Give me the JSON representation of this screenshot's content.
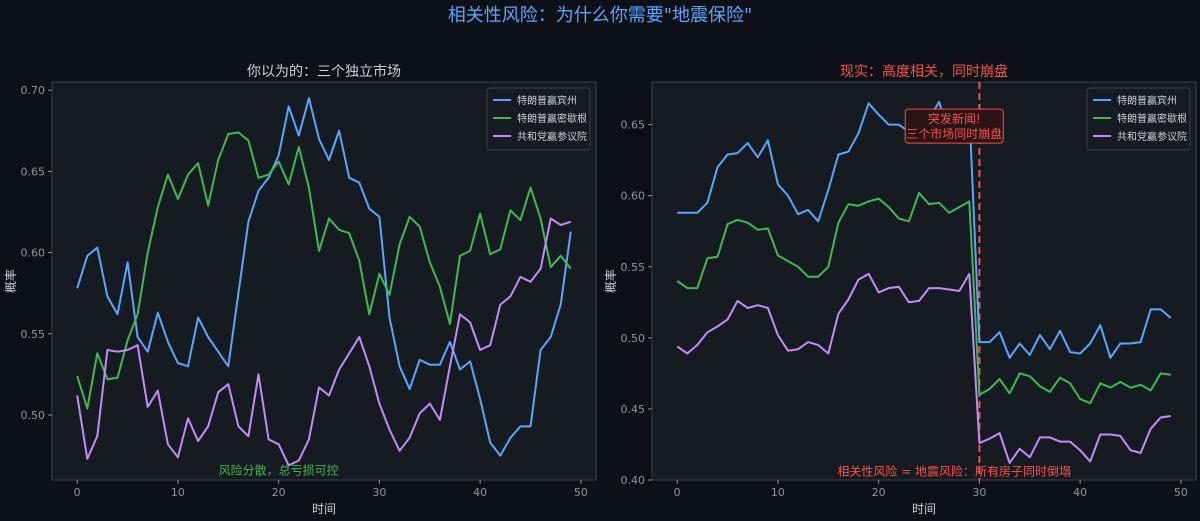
{
  "suptitle": "相关性风险：为什么你需要\"地震保险\"",
  "colors": {
    "background": "#0d1117",
    "axes_bg": "#161b22",
    "spine": "#3a4049",
    "text": "#c9d1d9",
    "tick": "#8b949e",
    "suptitle": "#58a6ff",
    "blue": "#58a6ff",
    "green": "#3fb950",
    "purple": "#c58af9",
    "red": "#f85149"
  },
  "chart_data": [
    {
      "type": "line",
      "title": "你以为的：三个独立市场",
      "xlabel": "时间",
      "ylabel": "概率",
      "xlim": [
        -2.5,
        51.5
      ],
      "ylim": [
        0.46,
        0.705
      ],
      "xticks": [
        0,
        10,
        20,
        30,
        40,
        50
      ],
      "yticks": [
        0.5,
        0.55,
        0.6,
        0.65,
        0.7
      ],
      "ytick_labels": [
        "0.50",
        "0.55",
        "0.60",
        "0.65",
        "0.70"
      ],
      "grid": false,
      "legend": "top-right",
      "x_start": 0,
      "series": [
        {
          "name": "特朗普赢宾州",
          "color": "#58a6ff",
          "values": [
            0.578,
            0.598,
            0.603,
            0.573,
            0.562,
            0.594,
            0.548,
            0.539,
            0.563,
            0.545,
            0.532,
            0.53,
            0.56,
            0.548,
            0.539,
            0.53,
            0.575,
            0.619,
            0.638,
            0.646,
            0.66,
            0.69,
            0.672,
            0.695,
            0.67,
            0.657,
            0.675,
            0.646,
            0.643,
            0.627,
            0.622,
            0.56,
            0.53,
            0.516,
            0.534,
            0.531,
            0.531,
            0.545,
            0.528,
            0.533,
            0.51,
            0.483,
            0.475,
            0.486,
            0.493,
            0.493,
            0.54,
            0.548,
            0.568,
            0.613
          ]
        },
        {
          "name": "特朗普赢密歇根",
          "color": "#3fb950",
          "values": [
            0.524,
            0.504,
            0.538,
            0.522,
            0.523,
            0.546,
            0.562,
            0.6,
            0.628,
            0.648,
            0.633,
            0.648,
            0.655,
            0.629,
            0.657,
            0.673,
            0.674,
            0.669,
            0.646,
            0.648,
            0.656,
            0.642,
            0.665,
            0.64,
            0.601,
            0.621,
            0.614,
            0.612,
            0.595,
            0.562,
            0.587,
            0.574,
            0.605,
            0.622,
            0.616,
            0.594,
            0.579,
            0.556,
            0.598,
            0.601,
            0.624,
            0.599,
            0.602,
            0.626,
            0.62,
            0.64,
            0.621,
            0.591,
            0.598,
            0.59
          ]
        },
        {
          "name": "共和党赢参议院",
          "color": "#c58af9",
          "values": [
            0.512,
            0.473,
            0.487,
            0.54,
            0.539,
            0.54,
            0.543,
            0.505,
            0.515,
            0.482,
            0.474,
            0.498,
            0.484,
            0.493,
            0.514,
            0.519,
            0.493,
            0.487,
            0.525,
            0.485,
            0.482,
            0.469,
            0.472,
            0.485,
            0.517,
            0.512,
            0.528,
            0.538,
            0.548,
            0.53,
            0.507,
            0.491,
            0.478,
            0.486,
            0.501,
            0.507,
            0.497,
            0.53,
            0.562,
            0.557,
            0.54,
            0.543,
            0.568,
            0.573,
            0.585,
            0.582,
            0.59,
            0.621,
            0.617,
            0.619
          ]
        }
      ],
      "annotations": [
        {
          "text": "风险分散，总亏损可控",
          "x": 20,
          "y": 0.466,
          "color": "#3fb950"
        }
      ]
    },
    {
      "type": "line",
      "title": "现实：高度相关，同时崩盘",
      "xlabel": "时间",
      "ylabel": "概率",
      "xlim": [
        -2.5,
        51.5
      ],
      "ylim": [
        0.4,
        0.68
      ],
      "xticks": [
        0,
        10,
        20,
        30,
        40,
        50
      ],
      "yticks": [
        0.4,
        0.45,
        0.5,
        0.55,
        0.6,
        0.65
      ],
      "ytick_labels": [
        "0.40",
        "0.45",
        "0.50",
        "0.55",
        "0.60",
        "0.65"
      ],
      "grid": false,
      "legend": "top-right",
      "x_start": 0,
      "event_x": 30,
      "series": [
        {
          "name": "特朗普赢宾州",
          "color": "#58a6ff",
          "values": [
            0.588,
            0.588,
            0.588,
            0.595,
            0.62,
            0.629,
            0.63,
            0.637,
            0.627,
            0.639,
            0.608,
            0.6,
            0.587,
            0.59,
            0.582,
            0.604,
            0.629,
            0.631,
            0.644,
            0.665,
            0.657,
            0.65,
            0.65,
            0.645,
            0.656,
            0.654,
            0.666,
            0.642,
            0.652,
            0.66,
            0.497,
            0.497,
            0.504,
            0.486,
            0.496,
            0.488,
            0.502,
            0.492,
            0.505,
            0.49,
            0.489,
            0.496,
            0.509,
            0.486,
            0.496,
            0.496,
            0.497,
            0.52,
            0.52,
            0.514
          ]
        },
        {
          "name": "特朗普赢密歇根",
          "color": "#3fb950",
          "values": [
            0.54,
            0.535,
            0.535,
            0.556,
            0.557,
            0.58,
            0.583,
            0.581,
            0.576,
            0.577,
            0.558,
            0.554,
            0.55,
            0.543,
            0.543,
            0.55,
            0.581,
            0.594,
            0.593,
            0.596,
            0.598,
            0.592,
            0.584,
            0.582,
            0.602,
            0.594,
            0.595,
            0.588,
            0.592,
            0.596,
            0.46,
            0.464,
            0.471,
            0.461,
            0.475,
            0.473,
            0.466,
            0.462,
            0.472,
            0.468,
            0.457,
            0.454,
            0.468,
            0.465,
            0.469,
            0.465,
            0.467,
            0.463,
            0.475,
            0.474
          ]
        },
        {
          "name": "共和党赢参议院",
          "color": "#c58af9",
          "values": [
            0.494,
            0.489,
            0.495,
            0.504,
            0.508,
            0.513,
            0.526,
            0.521,
            0.523,
            0.521,
            0.502,
            0.491,
            0.492,
            0.497,
            0.495,
            0.489,
            0.517,
            0.527,
            0.541,
            0.545,
            0.532,
            0.535,
            0.536,
            0.525,
            0.526,
            0.535,
            0.535,
            0.534,
            0.533,
            0.545,
            0.426,
            0.429,
            0.433,
            0.412,
            0.422,
            0.416,
            0.43,
            0.43,
            0.427,
            0.427,
            0.421,
            0.413,
            0.432,
            0.432,
            0.431,
            0.421,
            0.419,
            0.436,
            0.444,
            0.445
          ]
        }
      ],
      "annotations": [
        {
          "text": "突发新闻!\n三个市场同时崩盘",
          "x": 27.5,
          "y": 0.649,
          "color": "#f85149",
          "boxed": true
        },
        {
          "text": "相关性风险 = 地震风险：所有房子同时倒塌",
          "x": 27.5,
          "y": 0.406,
          "color": "#f85149"
        }
      ]
    }
  ]
}
